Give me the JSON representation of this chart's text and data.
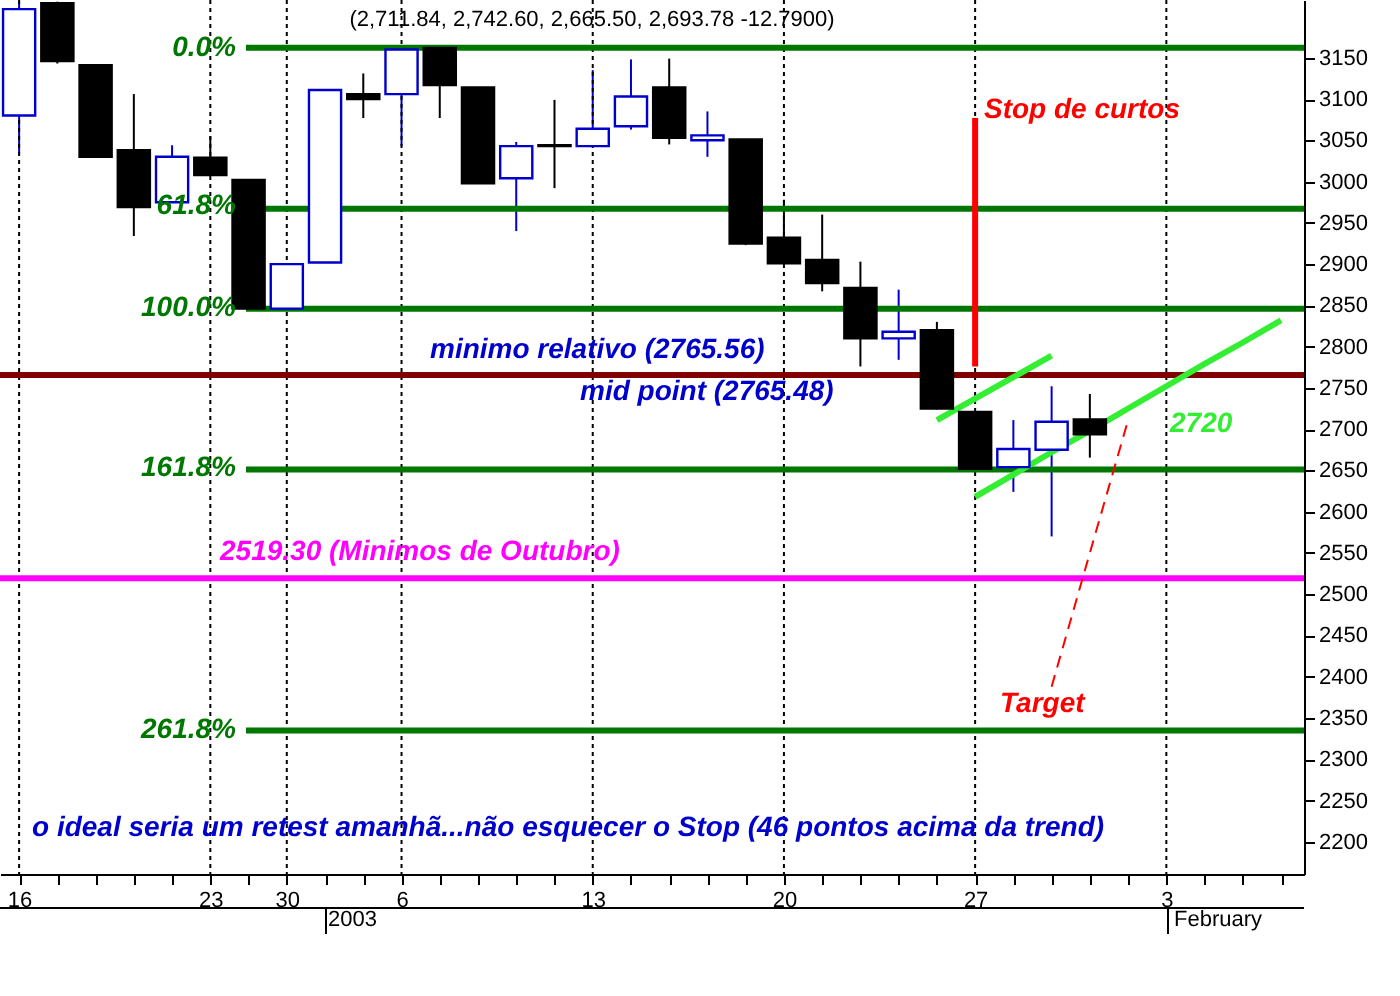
{
  "chart_data": {
    "type": "candlestick",
    "title": "(2,711.84, 2,742.60, 2,665.50, 2,693.78 -12.7900)",
    "categories": [
      "16",
      null,
      null,
      null,
      null,
      "23",
      null,
      "30",
      null,
      null,
      "6",
      null,
      null,
      null,
      null,
      "13",
      null,
      null,
      null,
      null,
      "20",
      null,
      null,
      null,
      null,
      "27",
      null,
      null,
      null,
      null,
      "3",
      null,
      null,
      null
    ],
    "ohlc": [
      [
        3080,
        3218,
        3034,
        3209
      ],
      [
        3216,
        3218,
        3143,
        3146
      ],
      [
        3141,
        3141,
        3029,
        3030
      ],
      [
        3038,
        3106,
        2934,
        2969
      ],
      [
        2975,
        3044,
        2975,
        3030
      ],
      [
        3029,
        3055,
        3007,
        3008
      ],
      [
        3002,
        3002,
        2846,
        2846
      ],
      [
        2846,
        2900,
        2846,
        2900
      ],
      [
        2902,
        3111,
        2902,
        3111
      ],
      [
        3106,
        3131,
        3077,
        3100
      ],
      [
        3106,
        3162,
        3043,
        3160
      ],
      [
        3162,
        3162,
        3077,
        3117
      ],
      [
        3114,
        3114,
        2998,
        2998
      ],
      [
        3004,
        3048,
        2940,
        3043
      ],
      [
        3044,
        3099,
        2992,
        3043
      ],
      [
        3043,
        3135,
        3043,
        3064
      ],
      [
        3067,
        3148,
        3063,
        3103
      ],
      [
        3114,
        3149,
        3045,
        3053
      ],
      [
        3050,
        3085,
        3030,
        3056
      ],
      [
        3051,
        3051,
        2923,
        2925
      ],
      [
        2932,
        2978,
        2900,
        2901
      ],
      [
        2905,
        2960,
        2867,
        2877
      ],
      [
        2871,
        2903,
        2776,
        2810
      ],
      [
        2810,
        2869,
        2784,
        2818
      ],
      [
        2820,
        2830,
        2724,
        2725
      ],
      [
        2721,
        2721,
        2652,
        2652
      ],
      [
        2654,
        2711,
        2624,
        2676
      ],
      [
        2675,
        2752,
        2570,
        2709
      ],
      [
        2711.84,
        2742.6,
        2665.5,
        2693.78
      ],
      null,
      null,
      null,
      null,
      null
    ],
    "colors": [
      "#0000cc",
      "#000000",
      "#000000",
      "#000000",
      "#0000cc",
      "#000000",
      "#000000",
      "#0000cc",
      "#0000cc",
      "#000000",
      "#0000cc",
      "#000000",
      "#000000",
      "#0000cc",
      "#000000",
      "#0000cc",
      "#0000cc",
      "#000000",
      "#0000cc",
      "#000000",
      "#000000",
      "#000000",
      "#000000",
      "#0000cc",
      "#000000",
      "#000000",
      "#0000cc",
      "#0000cc",
      "#000000",
      null,
      null,
      null,
      null,
      null
    ],
    "series": [
      {
        "type": "line",
        "color": "#33ee33",
        "values": [
          null,
          null,
          null,
          null,
          null,
          null,
          null,
          null,
          null,
          null,
          null,
          null,
          null,
          null,
          null,
          null,
          null,
          null,
          null,
          null,
          null,
          null,
          null,
          null,
          2711,
          2737,
          2763,
          2789,
          null,
          null,
          null,
          null,
          null,
          null
        ]
      },
      {
        "type": "line",
        "color": "#33ee33",
        "values": [
          null,
          null,
          null,
          null,
          null,
          null,
          null,
          null,
          null,
          null,
          null,
          null,
          null,
          null,
          null,
          null,
          null,
          null,
          null,
          null,
          null,
          null,
          null,
          null,
          null,
          2618,
          2645,
          2672,
          2698,
          2725,
          2752,
          2779,
          2805,
          2832
        ]
      },
      {
        "type": "line",
        "color": "#ff0000",
        "line_style": "dashed",
        "values": [
          null,
          null,
          null,
          null,
          null,
          null,
          null,
          null,
          null,
          null,
          null,
          null,
          null,
          null,
          null,
          null,
          null,
          null,
          null,
          null,
          null,
          null,
          null,
          null,
          null,
          null,
          null,
          2388,
          2550,
          2711,
          null,
          null,
          null,
          null
        ]
      },
      {
        "type": "line",
        "color": "#ff0000",
        "x": [
          "27",
          "27"
        ],
        "values": [
          3077,
          2776
        ]
      }
    ],
    "ylim": [
      2161,
      3220
    ],
    "yticks": [
      2200,
      2250,
      2300,
      2350,
      2400,
      2450,
      2500,
      2550,
      2600,
      2650,
      2700,
      2750,
      2800,
      2850,
      2900,
      2950,
      3000,
      3050,
      3100,
      3150
    ],
    "grid": "x",
    "ref_lines": [
      {
        "axis": "y",
        "value": 3162,
        "label": null,
        "color": "#007700"
      },
      {
        "axis": "y",
        "value": 2967,
        "label": null,
        "color": "#007700"
      },
      {
        "axis": "y",
        "value": 2846,
        "label": null,
        "color": "#007700"
      },
      {
        "axis": "y",
        "value": 2651,
        "label": null,
        "color": "#007700"
      },
      {
        "axis": "y",
        "value": 2335,
        "label": null,
        "color": "#007700"
      },
      {
        "axis": "y",
        "value": 2765.56,
        "label": null,
        "color": "#800000"
      },
      {
        "axis": "y",
        "value": 2519.3,
        "label": "2519.30 (Minimos de Outubro)",
        "color": "#ff00ff"
      }
    ],
    "annotations": [
      "0.0%",
      "61.8%",
      "100.0%",
      "161.8%",
      "261.8%",
      "minimo relativo (2765.56)",
      "mid point (2765.48)",
      "Stop de curtos",
      "Target",
      "2720",
      "o ideal seria um retest amanhã...não esquecer o Stop (46 pontos acima da trend)",
      "2003",
      "February"
    ]
  }
}
